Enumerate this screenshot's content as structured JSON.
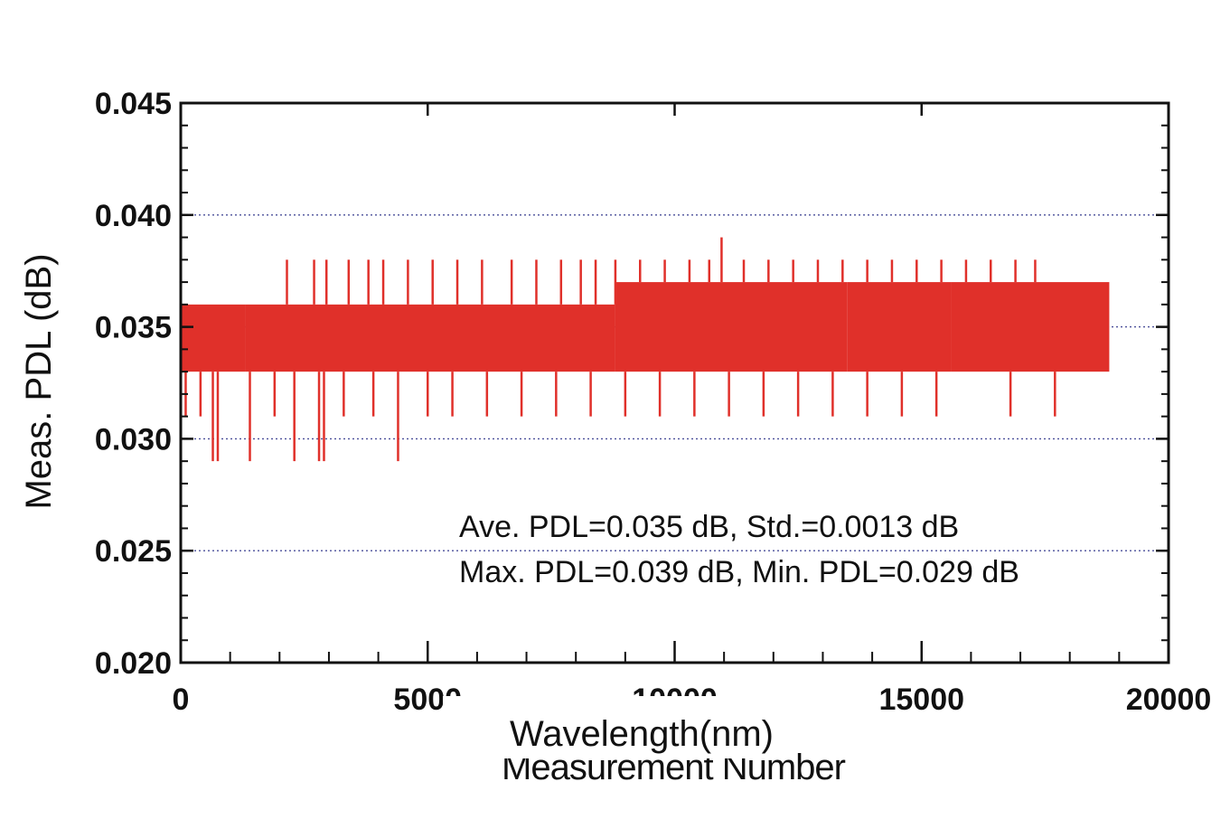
{
  "chart_data": {
    "type": "line",
    "title": "",
    "xlabel": "Wavelength(nm)",
    "xlabel_underlay": "Measurement Number",
    "ylabel": "Meas. PDL (dB)",
    "xlim": [
      0,
      20000
    ],
    "ylim": [
      0.02,
      0.045
    ],
    "x_ticks": [
      "0",
      "5000",
      "10000",
      "15000",
      "20000"
    ],
    "y_ticks": [
      "0.020",
      "0.025",
      "0.030",
      "0.035",
      "0.040",
      "0.045"
    ],
    "grid": "horizontal-dotted",
    "legend": "none",
    "color": "#e0302a",
    "annotations": [
      "Ave. PDL=0.035 dB, Std.=0.0013 dB",
      "Max. PDL=0.039 dB, Min. PDL=0.029 dB"
    ],
    "segments": [
      {
        "x_start": 0,
        "x_end": 1300,
        "band_low": 0.033,
        "band_high": 0.036
      },
      {
        "x_start": 1300,
        "x_end": 8800,
        "band_low": 0.033,
        "band_high": 0.036
      },
      {
        "x_start": 8800,
        "x_end": 13500,
        "band_low": 0.033,
        "band_high": 0.037
      },
      {
        "x_start": 13500,
        "x_end": 15600,
        "band_low": 0.033,
        "band_high": 0.037
      },
      {
        "x_start": 15600,
        "x_end": 18800,
        "band_low": 0.033,
        "band_high": 0.037
      }
    ],
    "spikes_high": [
      [
        2150,
        0.038
      ],
      [
        2700,
        0.038
      ],
      [
        2950,
        0.038
      ],
      [
        3400,
        0.038
      ],
      [
        3800,
        0.038
      ],
      [
        4100,
        0.038
      ],
      [
        4600,
        0.038
      ],
      [
        5100,
        0.038
      ],
      [
        5600,
        0.038
      ],
      [
        6100,
        0.038
      ],
      [
        6700,
        0.038
      ],
      [
        7200,
        0.038
      ],
      [
        7700,
        0.038
      ],
      [
        8100,
        0.038
      ],
      [
        8400,
        0.038
      ],
      [
        8800,
        0.038
      ],
      [
        9300,
        0.038
      ],
      [
        9800,
        0.038
      ],
      [
        10300,
        0.038
      ],
      [
        10700,
        0.038
      ],
      [
        10950,
        0.039
      ],
      [
        11400,
        0.038
      ],
      [
        11900,
        0.038
      ],
      [
        12400,
        0.038
      ],
      [
        12900,
        0.038
      ],
      [
        13400,
        0.038
      ],
      [
        13900,
        0.038
      ],
      [
        14400,
        0.038
      ],
      [
        14900,
        0.038
      ],
      [
        15400,
        0.038
      ],
      [
        15900,
        0.038
      ],
      [
        16400,
        0.038
      ],
      [
        16900,
        0.038
      ],
      [
        17300,
        0.038
      ]
    ],
    "spikes_low": [
      [
        100,
        0.031
      ],
      [
        400,
        0.031
      ],
      [
        650,
        0.029
      ],
      [
        750,
        0.029
      ],
      [
        1400,
        0.029
      ],
      [
        1900,
        0.031
      ],
      [
        2300,
        0.029
      ],
      [
        2800,
        0.029
      ],
      [
        2900,
        0.029
      ],
      [
        3300,
        0.031
      ],
      [
        3900,
        0.031
      ],
      [
        4400,
        0.029
      ],
      [
        5000,
        0.031
      ],
      [
        5500,
        0.031
      ],
      [
        6200,
        0.031
      ],
      [
        6900,
        0.031
      ],
      [
        7600,
        0.031
      ],
      [
        8300,
        0.031
      ],
      [
        9000,
        0.031
      ],
      [
        9700,
        0.031
      ],
      [
        10400,
        0.031
      ],
      [
        11100,
        0.031
      ],
      [
        11800,
        0.031
      ],
      [
        12500,
        0.031
      ],
      [
        13200,
        0.031
      ],
      [
        13900,
        0.031
      ],
      [
        14600,
        0.031
      ],
      [
        15300,
        0.031
      ],
      [
        16800,
        0.031
      ],
      [
        17700,
        0.031
      ]
    ]
  }
}
